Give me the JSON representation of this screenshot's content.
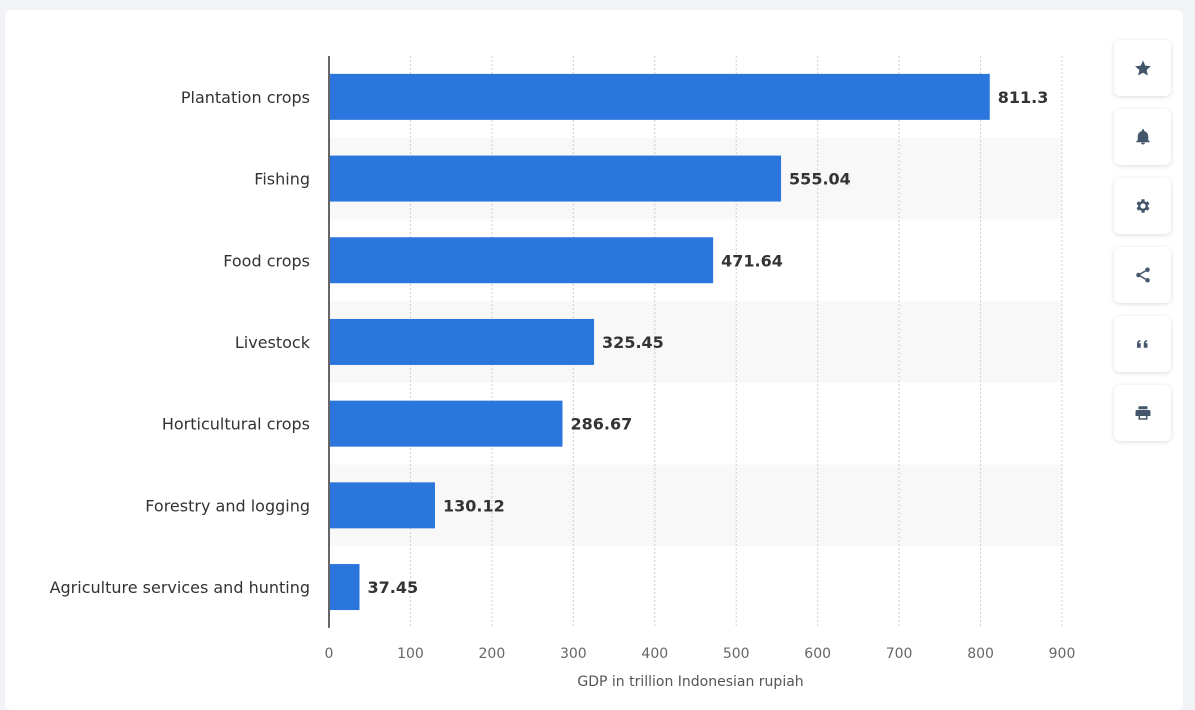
{
  "chart_data": {
    "type": "bar",
    "orientation": "horizontal",
    "categories": [
      "Plantation crops",
      "Fishing",
      "Food crops",
      "Livestock",
      "Horticultural crops",
      "Forestry and logging",
      "Agriculture services and hunting"
    ],
    "values": [
      811.3,
      555.04,
      471.64,
      325.45,
      286.67,
      130.12,
      37.45
    ],
    "value_labels": [
      "811.3",
      "555.04",
      "471.64",
      "325.45",
      "286.67",
      "130.12",
      "37.45"
    ],
    "xlabel": "GDP in trillion Indonesian rupiah",
    "ylabel": "",
    "xlim": [
      0,
      900
    ],
    "ticks": [
      0,
      100,
      200,
      300,
      400,
      500,
      600,
      700,
      800,
      900
    ],
    "tick_labels": [
      "0",
      "100",
      "200",
      "300",
      "400",
      "500",
      "600",
      "700",
      "800",
      "900"
    ],
    "grid": true,
    "bar_color": "#2a76dd"
  },
  "toolbar": {
    "buttons": [
      {
        "name": "favorite-button",
        "icon": "star-icon"
      },
      {
        "name": "notification-button",
        "icon": "bell-icon"
      },
      {
        "name": "settings-button",
        "icon": "gear-icon"
      },
      {
        "name": "share-button",
        "icon": "share-icon"
      },
      {
        "name": "cite-button",
        "icon": "quote-icon"
      },
      {
        "name": "print-button",
        "icon": "print-icon"
      }
    ]
  }
}
